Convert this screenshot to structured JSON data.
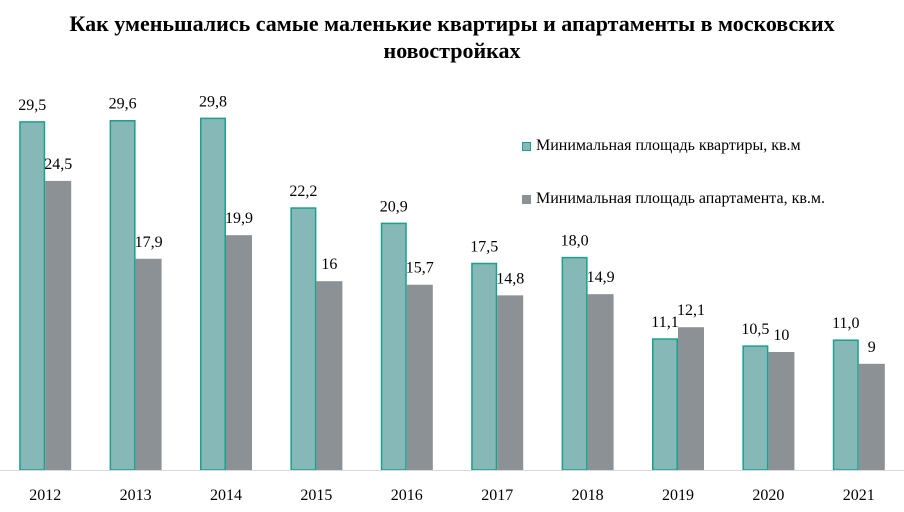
{
  "chart_data": {
    "type": "bar",
    "title": "Как уменьшались самые маленькие квартиры и апартаменты в московских новостройках",
    "categories": [
      "2012",
      "2013",
      "2014",
      "2015",
      "2016",
      "2017",
      "2018",
      "2019",
      "2020",
      "2021"
    ],
    "series": [
      {
        "name": "Минимальная площадь квартиры, кв.м",
        "values": [
          29.5,
          29.6,
          29.8,
          22.2,
          20.9,
          17.5,
          18.0,
          11.1,
          10.5,
          11.0
        ],
        "labels": [
          "29,5",
          "29,6",
          "29,8",
          "22,2",
          "20,9",
          "17,5",
          "18,0",
          "11,1",
          "10,5",
          "11,0"
        ],
        "color": "#86b8b8",
        "border_color": "#1aa08c"
      },
      {
        "name": "Минимальная площадь апартамента, кв.м.",
        "values": [
          24.5,
          17.9,
          19.9,
          16,
          15.7,
          14.8,
          14.9,
          12.1,
          10,
          9
        ],
        "labels": [
          "24,5",
          "17,9",
          "19,9",
          "16",
          "15,7",
          "14,8",
          "14,9",
          "12,1",
          "10",
          "9"
        ],
        "color": "#8c9196"
      }
    ],
    "ylim": [
      0,
      30
    ],
    "grid": false,
    "legend_position": "right"
  }
}
